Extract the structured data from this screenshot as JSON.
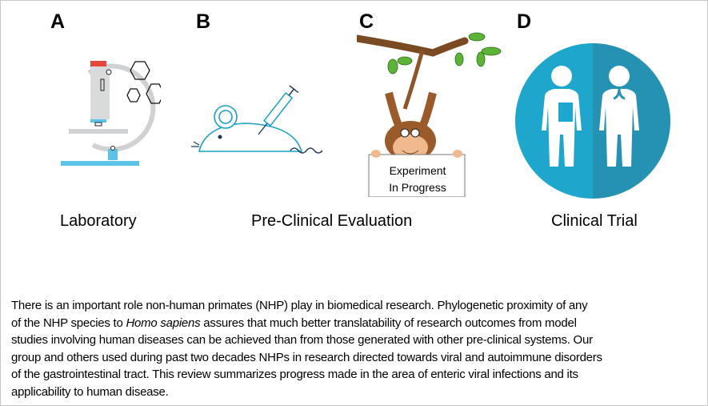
{
  "panels": [
    {
      "letter": "A",
      "icon": "microscope-icon"
    },
    {
      "letter": "B",
      "icon": "mouse-syringe-icon"
    },
    {
      "letter": "C",
      "icon": "monkey-icon",
      "sign": [
        "Experiment",
        "In Progress"
      ]
    },
    {
      "letter": "D",
      "icon": "doctor-patient-icon"
    }
  ],
  "labels": [
    "Laboratory",
    "Pre-Clinical Evaluation",
    "Clinical Trial"
  ],
  "abstract": {
    "lines": [
      "There is an important role non-human primates (NHP) play in biomedical research. Phylogenetic proximity of any",
      [
        "of the NHP species to ",
        "Homo sapiens",
        " assures that much better translatability of research outcomes from model"
      ],
      "studies involving human diseases can be achieved than from those generated with other pre-clinical systems. Our",
      "group and others used during past two decades NHPs in research directed towards viral and autoimmune disorders",
      "of the gastrointestinal tract. This review summarizes progress made in the area of enteric viral infections and its",
      "applicability to human disease."
    ]
  },
  "colors": {
    "blue_light": "#1fa6cc",
    "blue_dark": "#2592b3",
    "microscope_red": "#e8453c",
    "microscope_blue": "#5bc4e6",
    "monkey_brown": "#9a5a2a",
    "leaf_green": "#5cb338"
  }
}
